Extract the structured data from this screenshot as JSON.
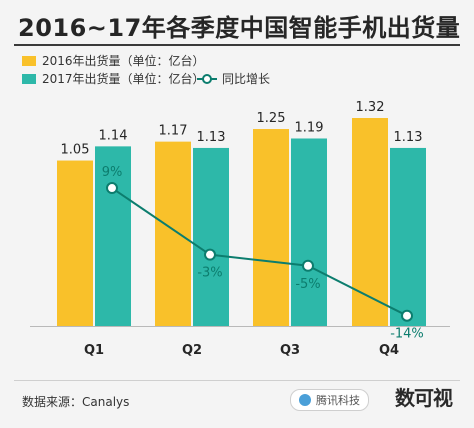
{
  "title": "2016~17年各季度中国智能手机出货量",
  "source": "数据来源：Canalys",
  "brand": {
    "badge_text": "腾讯科技",
    "logo_text": "数可视"
  },
  "colors": {
    "bar_2016": "#f9c12a",
    "bar_2017": "#2db8a9",
    "growth_line": "#0c7d6e",
    "text": "#262626"
  },
  "legend": {
    "bar_2016": "2016年出货量（单位：亿台）",
    "bar_2017": "2017年出货量（单位：亿台）",
    "growth": "同比增长"
  },
  "chart_data": {
    "type": "bar",
    "categories": [
      "Q1",
      "Q2",
      "Q3",
      "Q4"
    ],
    "series": [
      {
        "name": "2016年出货量（单位：亿台）",
        "values": [
          1.05,
          1.17,
          1.25,
          1.32
        ],
        "labels": [
          "1.05",
          "1.17",
          "1.25",
          "1.32"
        ]
      },
      {
        "name": "2017年出货量（单位：亿台）",
        "values": [
          1.14,
          1.13,
          1.19,
          1.13
        ],
        "labels": [
          "1.14",
          "1.13",
          "1.19",
          "1.13"
        ]
      }
    ],
    "growth": {
      "name": "同比增长",
      "type": "line",
      "values": [
        9,
        -3,
        -5,
        -14
      ],
      "labels": [
        "9%",
        "-3%",
        "-5%",
        "-14%"
      ]
    },
    "legend_position": "top-left",
    "grid": false
  }
}
